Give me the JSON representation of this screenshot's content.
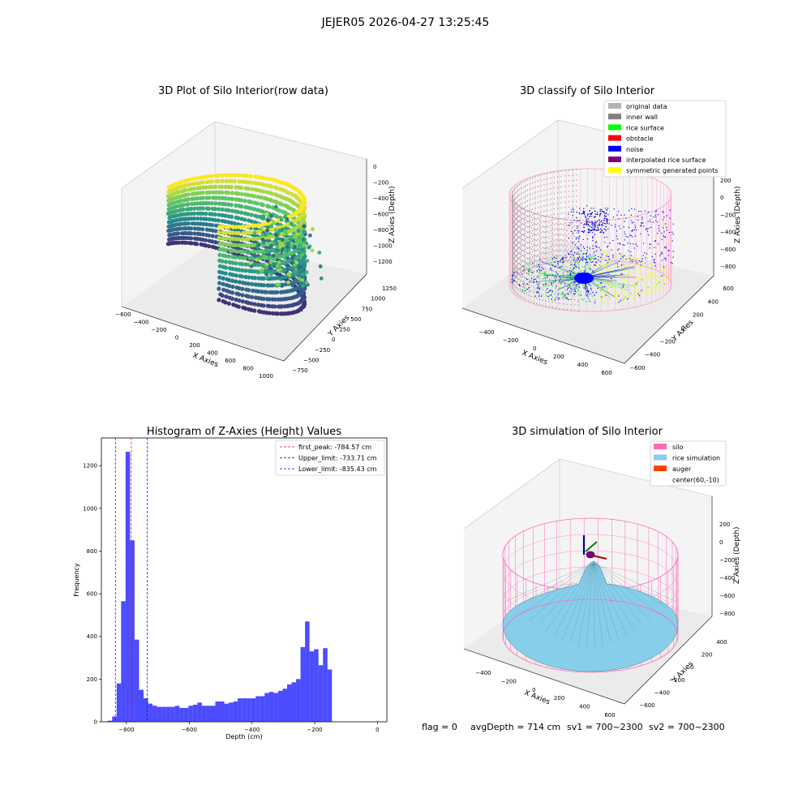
{
  "suptitle": "JEJER05 2026-04-27 13:25:45",
  "footer": {
    "flag": "flag = 0",
    "avg": "avgDepth = 714 cm",
    "sv1": "sv1 = 700~2300",
    "sv2": "sv2 = 700~2300"
  },
  "chart_data": [
    {
      "type": "scatter",
      "title": "3D Plot of Silo Interior(row data)",
      "xlabel": "X Axies",
      "ylabel": "Y Axies",
      "zlabel": "Z Axies (Depth)",
      "x_ticks": [
        "−600",
        "−400",
        "−200",
        "0",
        "200",
        "400",
        "600",
        "800",
        "1000"
      ],
      "y_ticks": [
        "−750",
        "−500",
        "−250",
        "0",
        "250",
        "500",
        "750",
        "1000",
        "1250"
      ],
      "z_ticks": [
        "0",
        "−200",
        "−400",
        "−600",
        "−800",
        "−1000",
        "−1200"
      ],
      "colormap": "viridis"
    },
    {
      "type": "scatter",
      "title": "3D classify of Silo Interior",
      "xlabel": "X Axies",
      "ylabel": "Y Axies",
      "zlabel": "Z Axies (Depth)",
      "x_ticks": [
        "−400",
        "−200",
        "0",
        "200",
        "400",
        "600"
      ],
      "y_ticks": [
        "−600",
        "−400",
        "−200",
        "0",
        "200",
        "400",
        "600"
      ],
      "z_ticks": [
        "200",
        "0",
        "−200",
        "−400",
        "−600",
        "−800"
      ],
      "legend_position": "top-right",
      "legend": [
        {
          "label": "original data",
          "color": "#b3b3b3"
        },
        {
          "label": "inner wall",
          "color": "#808080"
        },
        {
          "label": "rice surface",
          "color": "#00ff00"
        },
        {
          "label": "obstacle",
          "color": "#ff0000"
        },
        {
          "label": "noise",
          "color": "#0000ff"
        },
        {
          "label": "interpolated rice surface",
          "color": "#800080"
        },
        {
          "label": "symmetric generated points",
          "color": "#ffff00"
        }
      ]
    },
    {
      "type": "bar",
      "title": "Histogram of Z-Axies (Height) Values",
      "xlabel": "Depth (cm)",
      "ylabel": "Frequency",
      "xlim": [
        -880,
        30
      ],
      "ylim": [
        0,
        1330
      ],
      "x_ticks": [
        -800,
        -600,
        -400,
        -200,
        0
      ],
      "x_tick_labels": [
        "−800",
        "−600",
        "−400",
        "−200",
        "0"
      ],
      "y_ticks": [
        0,
        200,
        400,
        600,
        800,
        1000,
        1200
      ],
      "bar_color": "#0000ff",
      "bin_start": -860,
      "bin_width": 14.3,
      "values": [
        5,
        25,
        180,
        565,
        1265,
        850,
        385,
        150,
        110,
        85,
        75,
        70,
        70,
        70,
        70,
        75,
        65,
        65,
        75,
        80,
        90,
        75,
        75,
        75,
        95,
        95,
        85,
        90,
        95,
        110,
        110,
        110,
        110,
        120,
        120,
        135,
        140,
        135,
        145,
        155,
        175,
        185,
        200,
        350,
        470,
        330,
        340,
        265,
        345,
        245
      ],
      "vlines": [
        {
          "label": "first_peak: -784.57 cm",
          "x": -784.57,
          "color": "#ff0000"
        },
        {
          "label": "Upper_limit: -733.71 cm",
          "x": -733.71,
          "color": "#0000ff"
        },
        {
          "label": "Lower_limit: -835.43 cm",
          "x": -835.43,
          "color": "#0000ff"
        }
      ],
      "legend_position": "top-right"
    },
    {
      "type": "area",
      "title": "3D simulation of Silo Interior",
      "xlabel": "X Axies",
      "ylabel": "Y Axies",
      "zlabel": "Z Axies (Depth)",
      "x_ticks": [
        "−400",
        "−200",
        "0",
        "200",
        "400",
        "600"
      ],
      "y_ticks": [
        "−600",
        "−400",
        "−200",
        "0",
        "200",
        "400"
      ],
      "z_ticks": [
        "200",
        "0",
        "−200",
        "−400",
        "−600",
        "−800"
      ],
      "legend_position": "top-right",
      "legend": [
        {
          "label": "silo",
          "color": "#ff69b4"
        },
        {
          "label": "rice simulation",
          "color": "#87ceeb"
        },
        {
          "label": "auger",
          "color": "#ff4500"
        },
        {
          "label": "center(60,-10)",
          "color": "#ffffff"
        }
      ]
    }
  ]
}
